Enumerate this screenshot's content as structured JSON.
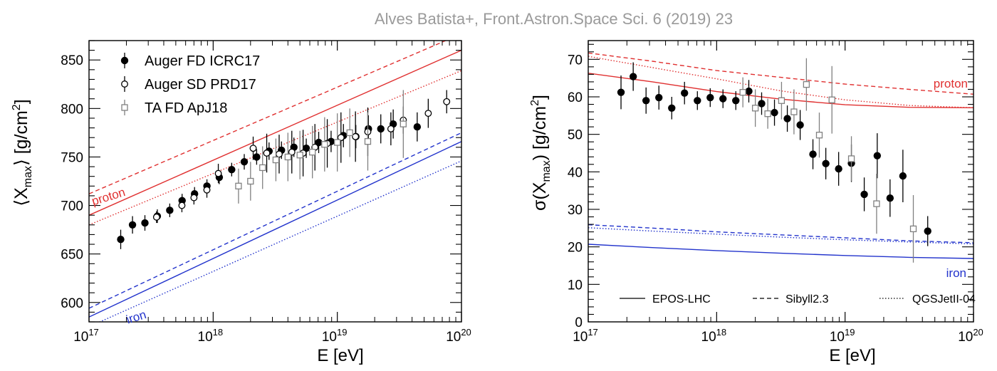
{
  "citation": "Alves Batista+, Front.Astron.Space Sci. 6 (2019) 23",
  "chart_data": [
    {
      "type": "scatter",
      "xlabel": "E [eV]",
      "ylabel_parts": {
        "pre": "⟨X",
        "sub": "max",
        "post": "⟩ [g/cm",
        "sup": "2",
        "end": "]"
      },
      "xscale": "log",
      "xlim": [
        1e+17,
        1e+20
      ],
      "ylim": [
        580,
        870
      ],
      "xticks": [
        {
          "value": 1e+17,
          "base": "10",
          "exp": "17"
        },
        {
          "value": 1e+18,
          "base": "10",
          "exp": "18"
        },
        {
          "value": 1e+19,
          "base": "10",
          "exp": "19"
        },
        {
          "value": 1e+20,
          "base": "10",
          "exp": "20"
        }
      ],
      "yticks": [
        600,
        650,
        700,
        750,
        800,
        850
      ],
      "legend_position": "top-left",
      "series": [
        {
          "name": "Auger FD ICRC17",
          "marker": "filled-circle",
          "color": "#000000",
          "x": [
            1.8e+17,
            2.24e+17,
            2.82e+17,
            3.55e+17,
            4.47e+17,
            5.62e+17,
            7.08e+17,
            8.91e+17,
            1.12e+18,
            1.41e+18,
            1.78e+18,
            2.24e+18,
            2.82e+18,
            3.55e+18,
            4.47e+18,
            5.62e+18,
            7.08e+18,
            8.91e+18,
            1.12e+19,
            1.41e+19,
            1.78e+19,
            2.24e+19,
            2.82e+19,
            4.4e+19
          ],
          "y": [
            665,
            680,
            682,
            689,
            695,
            705,
            712,
            720,
            729,
            737,
            745,
            750,
            756,
            757,
            760,
            759,
            765,
            766,
            772,
            771,
            779,
            779,
            784,
            781
          ],
          "yerr": [
            10,
            9,
            8,
            7,
            7,
            7,
            7,
            7,
            7,
            7,
            8,
            8,
            9,
            9,
            10,
            10,
            11,
            11,
            12,
            12,
            14,
            15,
            15,
            15
          ]
        },
        {
          "name": "Auger SD PRD17",
          "marker": "open-circle",
          "color": "#000000",
          "x": [
            3.5e+17,
            5.6e+17,
            7e+17,
            8.9e+17,
            1.1e+18,
            2.1e+18,
            2.7e+18,
            3.4e+18,
            4.3e+18,
            5.3e+18,
            6.6e+18,
            8.3e+18,
            1.07e+19,
            1.4e+19,
            1.76e+19,
            2.7e+19,
            3.4e+19,
            5.4e+19,
            7.6e+19
          ],
          "y": [
            688,
            700,
            708,
            716,
            733,
            759,
            754,
            753,
            755,
            754,
            760,
            764,
            770,
            771,
            776,
            779,
            788,
            795,
            807
          ],
          "yerr": [
            6,
            7,
            7,
            8,
            10,
            12,
            20,
            20,
            22,
            24,
            24,
            25,
            26,
            26,
            25,
            17,
            14,
            15,
            12
          ]
        },
        {
          "name": "TA FD ApJ18",
          "marker": "open-square",
          "color": "#808080",
          "x": [
            1.6e+18,
            2e+18,
            2.5e+18,
            3.2e+18,
            4e+18,
            5e+18,
            6.3e+18,
            7.9e+18,
            1e+19,
            1.26e+19,
            1.76e+19,
            3.4e+19
          ],
          "y": [
            720,
            725,
            739,
            747,
            750,
            752,
            755,
            763,
            765,
            775,
            766,
            784
          ],
          "yerr": [
            18,
            20,
            22,
            22,
            25,
            25,
            27,
            28,
            30,
            25,
            30,
            35
          ]
        }
      ],
      "model_lines": [
        {
          "name": "proton",
          "model": "EPOS-LHC",
          "style": "solid",
          "color": "#e03030",
          "x": [
            1e+17,
            1e+20
          ],
          "y": [
            690,
            860
          ]
        },
        {
          "name": "proton",
          "model": "Sibyll2.3",
          "style": "dashed",
          "color": "#e03030",
          "x": [
            1e+17,
            1e+20
          ],
          "y": [
            712,
            877
          ]
        },
        {
          "name": "proton",
          "model": "QGSJetII-04",
          "style": "dotted",
          "color": "#e03030",
          "x": [
            1e+17,
            1e+20
          ],
          "y": [
            680,
            839
          ]
        },
        {
          "name": "iron",
          "model": "EPOS-LHC",
          "style": "solid",
          "color": "#2233cc",
          "x": [
            1e+17,
            1e+20
          ],
          "y": [
            585,
            766
          ]
        },
        {
          "name": "iron",
          "model": "Sibyll2.3",
          "style": "dashed",
          "color": "#2233cc",
          "x": [
            1e+17,
            1e+20
          ],
          "y": [
            594,
            775
          ]
        },
        {
          "name": "iron",
          "model": "QGSJetII-04",
          "style": "dotted",
          "color": "#2233cc",
          "x": [
            1e+17,
            1e+20
          ],
          "y": [
            575,
            746
          ]
        }
      ],
      "annotations": [
        {
          "text": "proton",
          "color": "#e03030"
        },
        {
          "text": "iron",
          "color": "#2233cc"
        }
      ]
    },
    {
      "type": "scatter",
      "xlabel": "E [eV]",
      "ylabel_parts": {
        "pre": "σ(X",
        "sub": "max",
        "post": ") [g/cm",
        "sup": "2",
        "end": "]"
      },
      "xscale": "log",
      "xlim": [
        1e+17,
        1e+20
      ],
      "ylim": [
        0,
        75
      ],
      "xticks": [
        {
          "value": 1e+17,
          "base": "10",
          "exp": "17"
        },
        {
          "value": 1e+18,
          "base": "10",
          "exp": "18"
        },
        {
          "value": 1e+19,
          "base": "10",
          "exp": "19"
        },
        {
          "value": 1e+20,
          "base": "10",
          "exp": "20"
        }
      ],
      "yticks": [
        0,
        10,
        20,
        30,
        40,
        50,
        60,
        70
      ],
      "legend_position": "bottom",
      "legend": [
        {
          "label": "EPOS-LHC",
          "style": "solid"
        },
        {
          "label": "Sibyll2.3",
          "style": "dashed"
        },
        {
          "label": "QGSJetII-04",
          "style": "dotted"
        }
      ],
      "series": [
        {
          "name": "Auger FD ICRC17",
          "marker": "filled-circle",
          "color": "#000000",
          "x": [
            1.8e+17,
            2.24e+17,
            2.82e+17,
            3.55e+17,
            4.47e+17,
            5.62e+17,
            7.08e+17,
            8.91e+17,
            1.12e+18,
            1.41e+18,
            1.78e+18,
            2.24e+18,
            2.82e+18,
            3.55e+18,
            4.47e+18,
            5.62e+18,
            7.08e+18,
            8.91e+18,
            1.12e+19,
            1.41e+19,
            1.78e+19,
            2.24e+19,
            2.82e+19,
            4.4e+19
          ],
          "y": [
            61.2,
            65.4,
            59,
            59.8,
            57,
            61,
            59,
            59.8,
            59.5,
            59,
            61.5,
            58.2,
            55.8,
            54.2,
            52.5,
            44.7,
            42.2,
            40.8,
            42.3,
            34,
            44.3,
            33,
            38.9,
            24.2
          ],
          "yerr": [
            4.5,
            3.8,
            3.5,
            3.2,
            3,
            3,
            2.5,
            2.5,
            2.5,
            2.5,
            3,
            3,
            3.5,
            3.5,
            4,
            4,
            4.2,
            4.5,
            5,
            4.5,
            6,
            5,
            7,
            4
          ]
        },
        {
          "name": "TA FD ApJ18",
          "marker": "open-square",
          "color": "#808080",
          "x": [
            1.6e+18,
            2e+18,
            2.5e+18,
            3.2e+18,
            4e+18,
            5e+18,
            6.3e+18,
            7.9e+18,
            1.12e+19,
            1.76e+19,
            3.4e+19
          ],
          "y": [
            61.2,
            57,
            55.5,
            59,
            56,
            63.3,
            49.8,
            59.2,
            43.5,
            31.5,
            24.8
          ],
          "yerr": [
            4,
            5,
            4,
            5,
            6,
            7,
            6,
            9,
            6,
            8,
            9
          ]
        }
      ],
      "model_curves": [
        {
          "name": "proton",
          "model": "EPOS-LHC",
          "style": "solid",
          "color": "#e03030",
          "x": [
            1e+17,
            3.16e+17,
            1e+18,
            3.16e+18,
            1e+19,
            3.16e+19,
            1e+20
          ],
          "y": [
            66.3,
            64,
            61.4,
            59.4,
            57.9,
            57.2,
            57.1
          ]
        },
        {
          "name": "proton",
          "model": "Sibyll2.3",
          "style": "dashed",
          "color": "#e03030",
          "x": [
            1e+17,
            3.16e+17,
            1e+18,
            3.16e+18,
            1e+19,
            3.16e+19,
            1e+20
          ],
          "y": [
            71.7,
            69.5,
            67,
            65.2,
            63.4,
            62,
            60.7
          ]
        },
        {
          "name": "proton",
          "model": "QGSJetII-04",
          "style": "dotted",
          "color": "#e03030",
          "x": [
            1e+17,
            3.16e+17,
            1e+18,
            3.16e+18,
            1e+19,
            3.16e+19,
            1e+20
          ],
          "y": [
            70.8,
            67.8,
            64.8,
            61.6,
            59.2,
            57.7,
            57.1
          ]
        },
        {
          "name": "iron",
          "model": "EPOS-LHC",
          "style": "solid",
          "color": "#2233cc",
          "x": [
            1e+17,
            3.16e+17,
            1e+18,
            3.16e+18,
            1e+19,
            3.16e+19,
            1e+20
          ],
          "y": [
            20.7,
            19.8,
            19,
            18.3,
            17.7,
            17.2,
            16.9
          ]
        },
        {
          "name": "iron",
          "model": "Sibyll2.3",
          "style": "dashed",
          "color": "#2233cc",
          "x": [
            1e+17,
            3.16e+17,
            1e+18,
            3.16e+18,
            1e+19,
            3.16e+19,
            1e+20
          ],
          "y": [
            25.9,
            25,
            24,
            23.2,
            22.4,
            21.6,
            21.1
          ]
        },
        {
          "name": "iron",
          "model": "QGSJetII-04",
          "style": "dotted",
          "color": "#2233cc",
          "x": [
            1e+17,
            3.16e+17,
            1e+18,
            3.16e+18,
            1e+19,
            3.16e+19,
            1e+20
          ],
          "y": [
            25.1,
            24.2,
            23.4,
            22.6,
            21.9,
            21.3,
            20.8
          ]
        }
      ],
      "annotations": [
        {
          "text": "proton",
          "color": "#e03030"
        },
        {
          "text": "iron",
          "color": "#2233cc"
        }
      ]
    }
  ]
}
